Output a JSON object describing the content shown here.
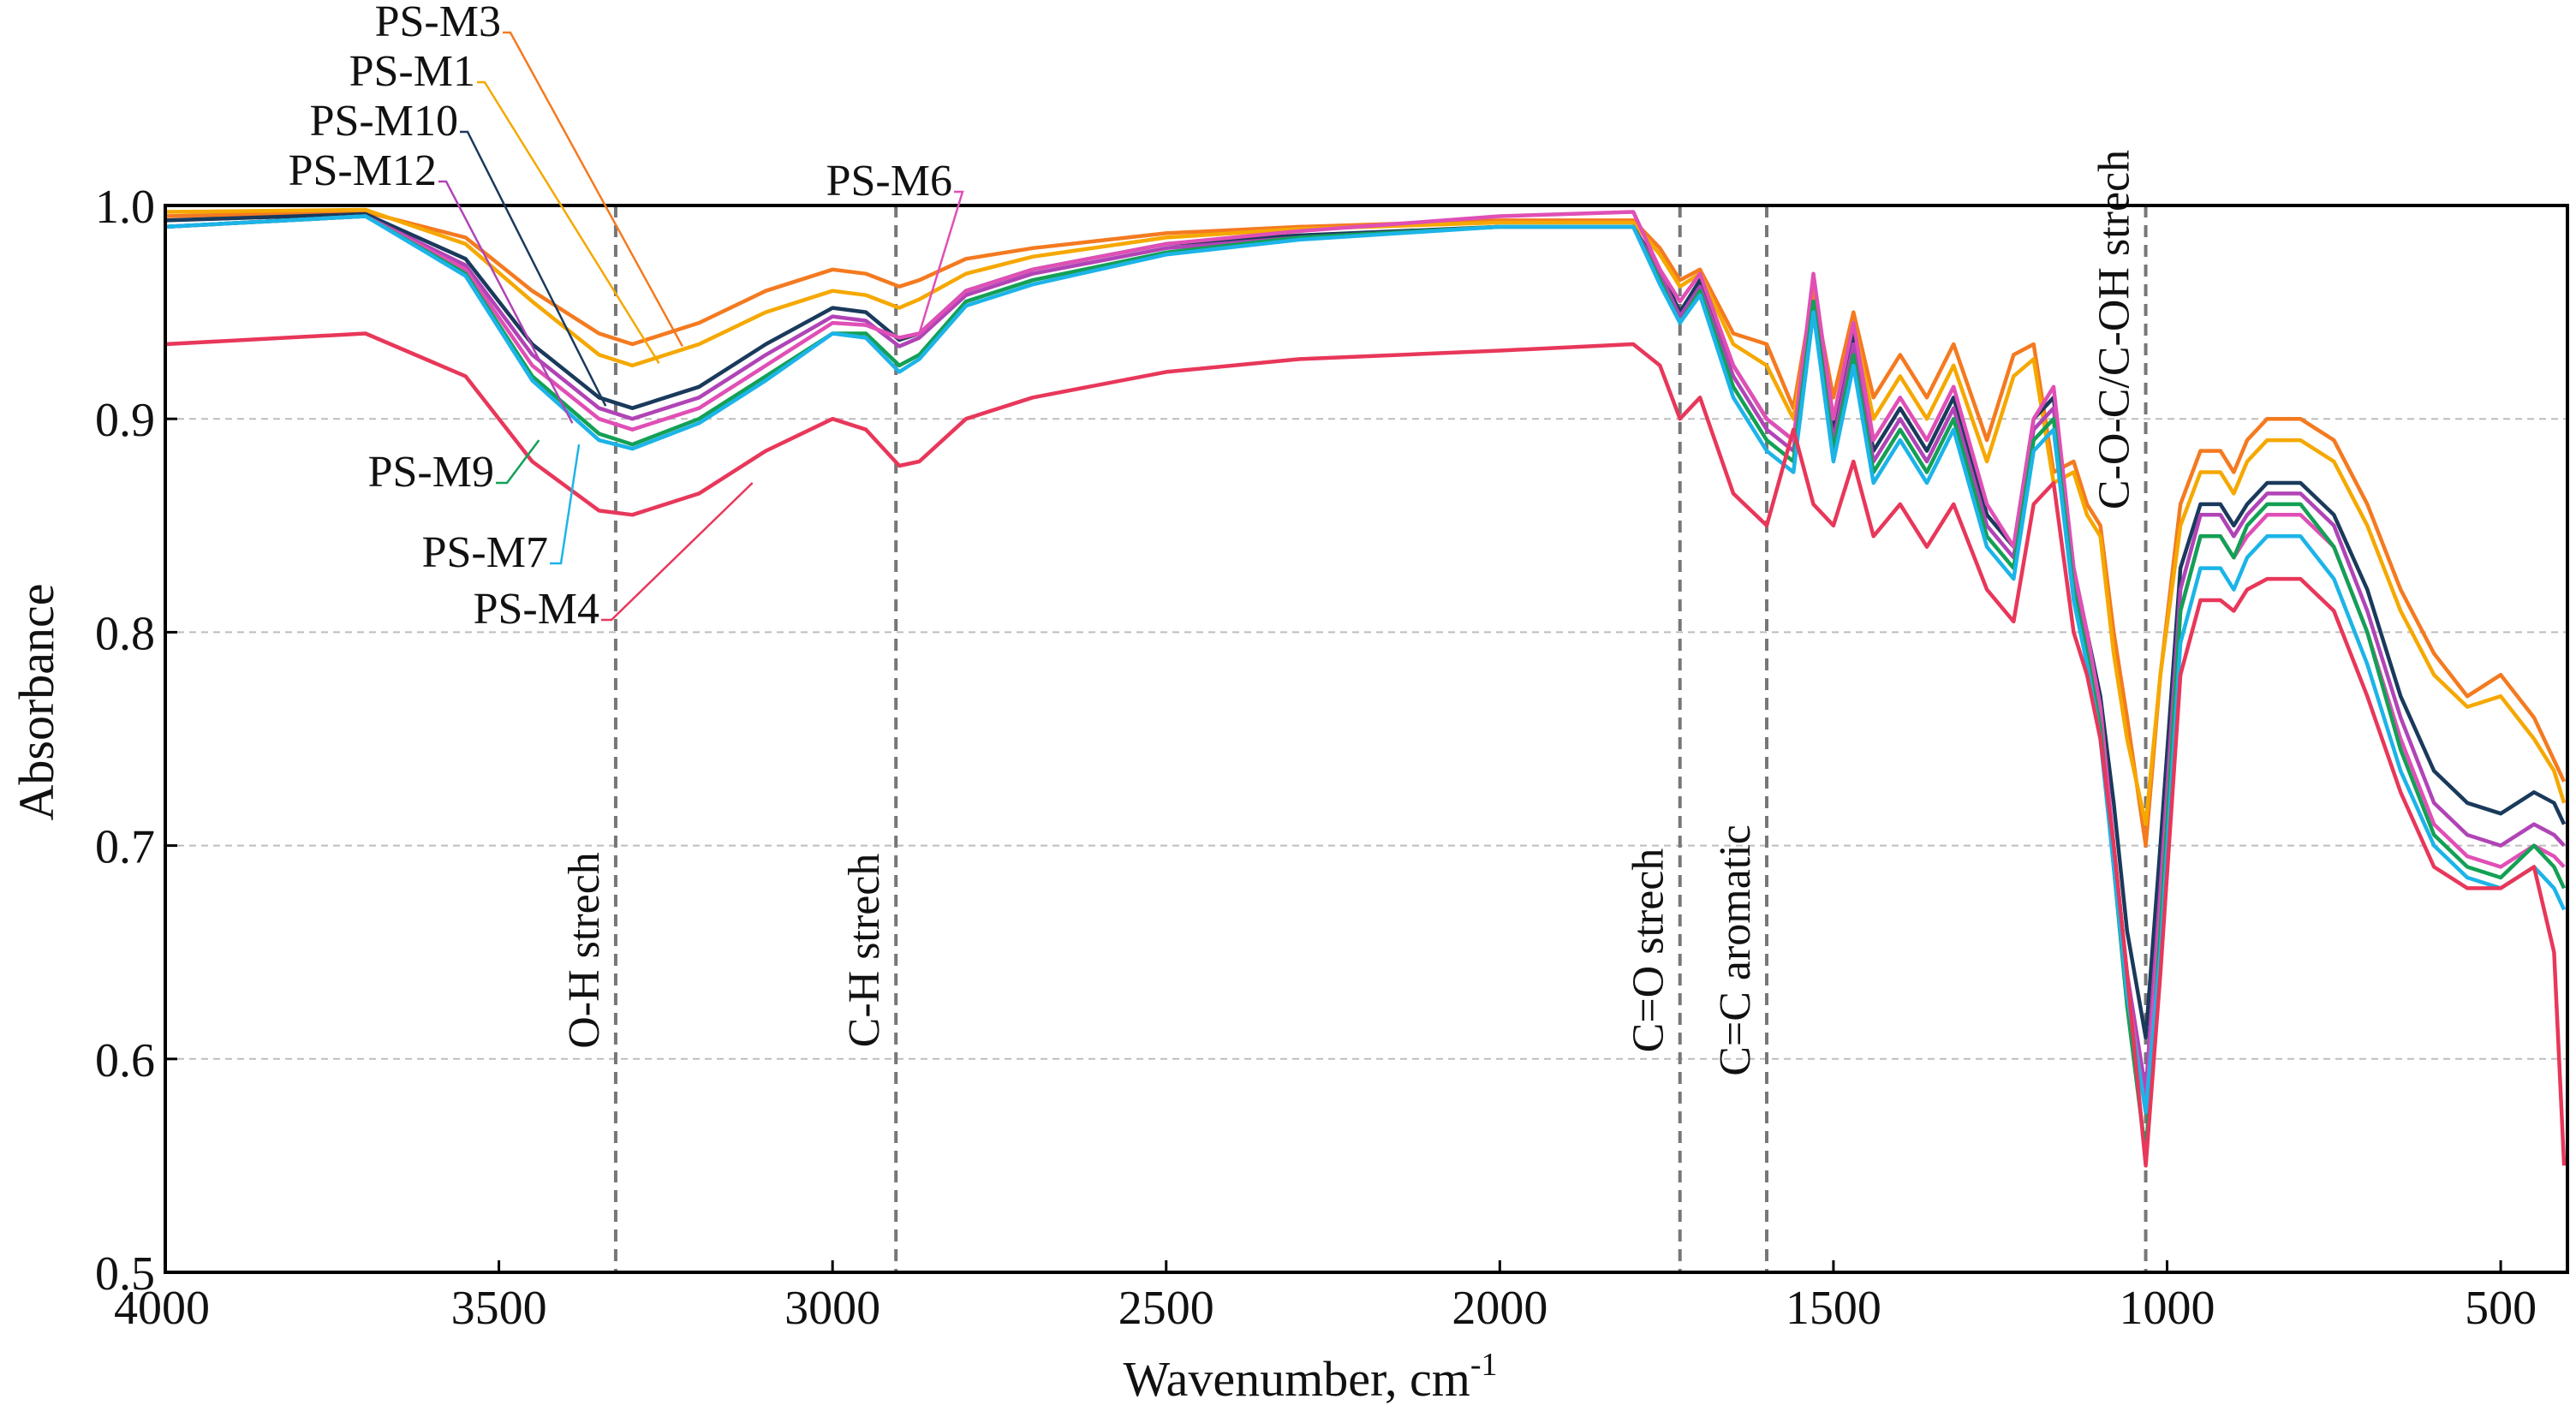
{
  "chart_data": {
    "type": "line",
    "title": "",
    "xlabel": "Wavenumber, cm",
    "xlabel_superscript": "-1",
    "ylabel": "Absorbance",
    "xlim": [
      4000,
      400
    ],
    "x_reversed": true,
    "ylim": [
      0.5,
      1.0
    ],
    "grid": true,
    "x_ticks": [
      4000,
      3500,
      3000,
      2500,
      2000,
      1500,
      1000,
      500
    ],
    "x_tick_labels": [
      "4000",
      "3500",
      "3000",
      "2500",
      "2000",
      "1500",
      "1000",
      "500"
    ],
    "y_ticks": [
      0.5,
      0.6,
      0.7,
      0.8,
      0.9,
      1.0
    ],
    "y_tick_labels": [
      "0.5",
      "0.6",
      "0.7",
      "0.8",
      "0.9",
      "1.0"
    ],
    "reference_lines": [
      {
        "x": 3325,
        "label": "O-H strech"
      },
      {
        "x": 2905,
        "label": "C-H strech"
      },
      {
        "x": 1730,
        "label": "C=O strech"
      },
      {
        "x": 1600,
        "label": "C=C aromatic"
      },
      {
        "x": 1032,
        "label": "C-O-C/C-OH strech"
      }
    ],
    "series": [
      {
        "name": "PS-M3",
        "color": "#f47a20",
        "x": [
          4000,
          3700,
          3550,
          3450,
          3350,
          3300,
          3200,
          3100,
          3000,
          2950,
          2900,
          2870,
          2800,
          2700,
          2500,
          2300,
          2000,
          1800,
          1760,
          1730,
          1700,
          1650,
          1600,
          1560,
          1530,
          1500,
          1470,
          1440,
          1400,
          1360,
          1320,
          1270,
          1230,
          1200,
          1170,
          1140,
          1120,
          1100,
          1080,
          1060,
          1032,
          1010,
          980,
          950,
          920,
          900,
          880,
          850,
          800,
          750,
          700,
          650,
          600,
          550,
          500,
          450,
          420,
          405
        ],
        "y": [
          0.995,
          0.997,
          0.985,
          0.96,
          0.94,
          0.935,
          0.945,
          0.96,
          0.97,
          0.968,
          0.962,
          0.965,
          0.975,
          0.98,
          0.987,
          0.99,
          0.993,
          0.993,
          0.98,
          0.965,
          0.97,
          0.94,
          0.935,
          0.905,
          0.96,
          0.91,
          0.95,
          0.91,
          0.93,
          0.91,
          0.935,
          0.89,
          0.93,
          0.935,
          0.875,
          0.88,
          0.86,
          0.85,
          0.8,
          0.76,
          0.7,
          0.78,
          0.86,
          0.885,
          0.885,
          0.875,
          0.89,
          0.9,
          0.9,
          0.89,
          0.86,
          0.82,
          0.79,
          0.77,
          0.78,
          0.76,
          0.74,
          0.73
        ]
      },
      {
        "name": "PS-M1",
        "color": "#f5a800",
        "x": [
          4000,
          3700,
          3550,
          3450,
          3350,
          3300,
          3200,
          3100,
          3000,
          2950,
          2900,
          2870,
          2800,
          2700,
          2500,
          2300,
          2000,
          1800,
          1760,
          1730,
          1700,
          1650,
          1600,
          1560,
          1530,
          1500,
          1470,
          1440,
          1400,
          1360,
          1320,
          1270,
          1230,
          1200,
          1170,
          1140,
          1120,
          1100,
          1080,
          1060,
          1032,
          1010,
          980,
          950,
          920,
          900,
          880,
          850,
          800,
          750,
          700,
          650,
          600,
          550,
          500,
          450,
          420,
          405
        ],
        "y": [
          0.997,
          0.998,
          0.982,
          0.955,
          0.93,
          0.925,
          0.935,
          0.95,
          0.96,
          0.958,
          0.952,
          0.956,
          0.968,
          0.976,
          0.985,
          0.989,
          0.992,
          0.992,
          0.977,
          0.962,
          0.968,
          0.935,
          0.925,
          0.9,
          0.955,
          0.9,
          0.945,
          0.9,
          0.92,
          0.9,
          0.925,
          0.88,
          0.92,
          0.928,
          0.87,
          0.875,
          0.855,
          0.845,
          0.79,
          0.75,
          0.71,
          0.78,
          0.85,
          0.875,
          0.875,
          0.865,
          0.88,
          0.89,
          0.89,
          0.88,
          0.85,
          0.81,
          0.78,
          0.765,
          0.77,
          0.75,
          0.735,
          0.72
        ]
      },
      {
        "name": "PS-M10",
        "color": "#1a3a5c",
        "x": [
          4000,
          3700,
          3550,
          3450,
          3350,
          3300,
          3200,
          3100,
          3000,
          2950,
          2900,
          2870,
          2800,
          2700,
          2500,
          2300,
          2000,
          1800,
          1760,
          1730,
          1700,
          1650,
          1600,
          1560,
          1530,
          1500,
          1470,
          1440,
          1400,
          1360,
          1320,
          1270,
          1230,
          1200,
          1170,
          1140,
          1120,
          1100,
          1080,
          1060,
          1032,
          1010,
          980,
          950,
          920,
          900,
          880,
          850,
          800,
          750,
          700,
          650,
          600,
          550,
          500,
          450,
          420,
          405
        ],
        "y": [
          0.993,
          0.996,
          0.975,
          0.935,
          0.91,
          0.905,
          0.915,
          0.935,
          0.952,
          0.95,
          0.937,
          0.94,
          0.96,
          0.97,
          0.982,
          0.986,
          0.99,
          0.99,
          0.97,
          0.95,
          0.965,
          0.925,
          0.9,
          0.89,
          0.955,
          0.895,
          0.94,
          0.885,
          0.905,
          0.885,
          0.91,
          0.855,
          0.84,
          0.9,
          0.91,
          0.83,
          0.8,
          0.77,
          0.72,
          0.66,
          0.61,
          0.7,
          0.83,
          0.86,
          0.86,
          0.85,
          0.86,
          0.87,
          0.87,
          0.855,
          0.82,
          0.77,
          0.735,
          0.72,
          0.715,
          0.725,
          0.72,
          0.71
        ]
      },
      {
        "name": "PS-M12",
        "color": "#b044b6",
        "x": [
          4000,
          3700,
          3550,
          3450,
          3350,
          3300,
          3200,
          3100,
          3000,
          2950,
          2900,
          2870,
          2800,
          2700,
          2500,
          2300,
          2000,
          1800,
          1760,
          1730,
          1700,
          1650,
          1600,
          1560,
          1530,
          1500,
          1470,
          1440,
          1400,
          1360,
          1320,
          1270,
          1230,
          1200,
          1170,
          1140,
          1120,
          1100,
          1080,
          1060,
          1032,
          1010,
          980,
          950,
          920,
          900,
          880,
          850,
          800,
          750,
          700,
          650,
          600,
          550,
          500,
          450,
          420,
          405
        ],
        "y": [
          0.99,
          0.995,
          0.972,
          0.93,
          0.905,
          0.9,
          0.91,
          0.93,
          0.948,
          0.946,
          0.934,
          0.938,
          0.958,
          0.968,
          0.98,
          0.985,
          0.99,
          0.99,
          0.968,
          0.948,
          0.962,
          0.92,
          0.895,
          0.885,
          0.95,
          0.89,
          0.935,
          0.88,
          0.9,
          0.88,
          0.905,
          0.85,
          0.835,
          0.895,
          0.905,
          0.825,
          0.795,
          0.76,
          0.7,
          0.64,
          0.585,
          0.68,
          0.82,
          0.855,
          0.855,
          0.845,
          0.855,
          0.865,
          0.865,
          0.85,
          0.81,
          0.76,
          0.72,
          0.705,
          0.7,
          0.71,
          0.705,
          0.7
        ]
      },
      {
        "name": "PS-M6",
        "color": "#e04fb6",
        "x": [
          4000,
          3700,
          3550,
          3450,
          3350,
          3300,
          3200,
          3100,
          3000,
          2950,
          2900,
          2870,
          2800,
          2700,
          2500,
          2300,
          2000,
          1800,
          1760,
          1730,
          1700,
          1650,
          1600,
          1560,
          1530,
          1500,
          1470,
          1440,
          1400,
          1360,
          1320,
          1270,
          1230,
          1200,
          1170,
          1140,
          1120,
          1100,
          1080,
          1060,
          1032,
          1010,
          980,
          950,
          920,
          900,
          880,
          850,
          800,
          750,
          700,
          650,
          600,
          550,
          500,
          450,
          420,
          405
        ],
        "y": [
          0.99,
          0.995,
          0.97,
          0.925,
          0.9,
          0.895,
          0.905,
          0.925,
          0.945,
          0.944,
          0.938,
          0.94,
          0.96,
          0.97,
          0.982,
          0.988,
          0.995,
          0.997,
          0.97,
          0.955,
          0.968,
          0.925,
          0.9,
          0.89,
          0.968,
          0.9,
          0.945,
          0.89,
          0.91,
          0.89,
          0.915,
          0.86,
          0.84,
          0.9,
          0.915,
          0.83,
          0.8,
          0.765,
          0.7,
          0.635,
          0.575,
          0.67,
          0.81,
          0.845,
          0.845,
          0.835,
          0.845,
          0.855,
          0.855,
          0.84,
          0.8,
          0.75,
          0.71,
          0.695,
          0.69,
          0.7,
          0.695,
          0.69
        ]
      },
      {
        "name": "PS-M9",
        "color": "#13a055",
        "x": [
          4000,
          3700,
          3550,
          3450,
          3350,
          3300,
          3200,
          3100,
          3000,
          2950,
          2900,
          2870,
          2800,
          2700,
          2500,
          2300,
          2000,
          1800,
          1760,
          1730,
          1700,
          1650,
          1600,
          1560,
          1530,
          1500,
          1470,
          1440,
          1400,
          1360,
          1320,
          1270,
          1230,
          1200,
          1170,
          1140,
          1120,
          1100,
          1080,
          1060,
          1032,
          1010,
          980,
          950,
          920,
          900,
          880,
          850,
          800,
          750,
          700,
          650,
          600,
          550,
          500,
          450,
          420,
          405
        ],
        "y": [
          0.99,
          0.995,
          0.968,
          0.92,
          0.893,
          0.888,
          0.9,
          0.92,
          0.94,
          0.94,
          0.925,
          0.93,
          0.955,
          0.965,
          0.978,
          0.985,
          0.99,
          0.99,
          0.965,
          0.945,
          0.96,
          0.915,
          0.89,
          0.88,
          0.955,
          0.885,
          0.93,
          0.875,
          0.895,
          0.875,
          0.9,
          0.845,
          0.83,
          0.89,
          0.9,
          0.82,
          0.79,
          0.755,
          0.69,
          0.625,
          0.555,
          0.66,
          0.81,
          0.845,
          0.845,
          0.835,
          0.85,
          0.86,
          0.86,
          0.84,
          0.8,
          0.745,
          0.705,
          0.69,
          0.685,
          0.7,
          0.69,
          0.68
        ]
      },
      {
        "name": "PS-M7",
        "color": "#1cb4e8",
        "x": [
          4000,
          3700,
          3550,
          3450,
          3350,
          3300,
          3200,
          3100,
          3000,
          2950,
          2900,
          2870,
          2800,
          2700,
          2500,
          2300,
          2000,
          1800,
          1760,
          1730,
          1700,
          1650,
          1600,
          1560,
          1530,
          1500,
          1470,
          1440,
          1400,
          1360,
          1320,
          1270,
          1230,
          1200,
          1170,
          1140,
          1120,
          1100,
          1080,
          1060,
          1032,
          1010,
          980,
          950,
          920,
          900,
          880,
          850,
          800,
          750,
          700,
          650,
          600,
          550,
          500,
          450,
          420,
          405
        ],
        "y": [
          0.99,
          0.995,
          0.967,
          0.918,
          0.89,
          0.886,
          0.898,
          0.918,
          0.94,
          0.938,
          0.922,
          0.928,
          0.953,
          0.963,
          0.977,
          0.984,
          0.99,
          0.99,
          0.963,
          0.945,
          0.958,
          0.91,
          0.885,
          0.875,
          0.95,
          0.88,
          0.925,
          0.87,
          0.89,
          0.87,
          0.895,
          0.84,
          0.825,
          0.885,
          0.895,
          0.815,
          0.785,
          0.75,
          0.69,
          0.63,
          0.575,
          0.65,
          0.795,
          0.83,
          0.83,
          0.82,
          0.835,
          0.845,
          0.845,
          0.825,
          0.785,
          0.735,
          0.7,
          0.685,
          0.68,
          0.69,
          0.68,
          0.67
        ]
      },
      {
        "name": "PS-M4",
        "color": "#e8375a",
        "x": [
          4000,
          3700,
          3550,
          3450,
          3350,
          3300,
          3200,
          3100,
          3000,
          2950,
          2900,
          2870,
          2800,
          2700,
          2500,
          2300,
          2000,
          1800,
          1760,
          1730,
          1700,
          1650,
          1600,
          1560,
          1530,
          1500,
          1470,
          1440,
          1400,
          1360,
          1320,
          1270,
          1230,
          1200,
          1170,
          1140,
          1120,
          1100,
          1080,
          1060,
          1032,
          1010,
          980,
          950,
          920,
          900,
          880,
          850,
          800,
          750,
          700,
          650,
          600,
          550,
          500,
          450,
          420,
          405
        ],
        "y": [
          0.935,
          0.94,
          0.92,
          0.88,
          0.857,
          0.855,
          0.865,
          0.885,
          0.9,
          0.895,
          0.878,
          0.88,
          0.9,
          0.91,
          0.922,
          0.928,
          0.932,
          0.935,
          0.925,
          0.9,
          0.91,
          0.865,
          0.85,
          0.895,
          0.86,
          0.85,
          0.88,
          0.845,
          0.86,
          0.84,
          0.86,
          0.82,
          0.805,
          0.86,
          0.87,
          0.8,
          0.78,
          0.75,
          0.7,
          0.64,
          0.55,
          0.64,
          0.78,
          0.815,
          0.815,
          0.81,
          0.82,
          0.825,
          0.825,
          0.81,
          0.77,
          0.725,
          0.69,
          0.68,
          0.68,
          0.69,
          0.65,
          0.55
        ]
      }
    ],
    "series_labels": [
      {
        "name": "PS-M3"
      },
      {
        "name": "PS-M1"
      },
      {
        "name": "PS-M10"
      },
      {
        "name": "PS-M12"
      },
      {
        "name": "PS-M6"
      },
      {
        "name": "PS-M9"
      },
      {
        "name": "PS-M7"
      },
      {
        "name": "PS-M4"
      }
    ]
  }
}
